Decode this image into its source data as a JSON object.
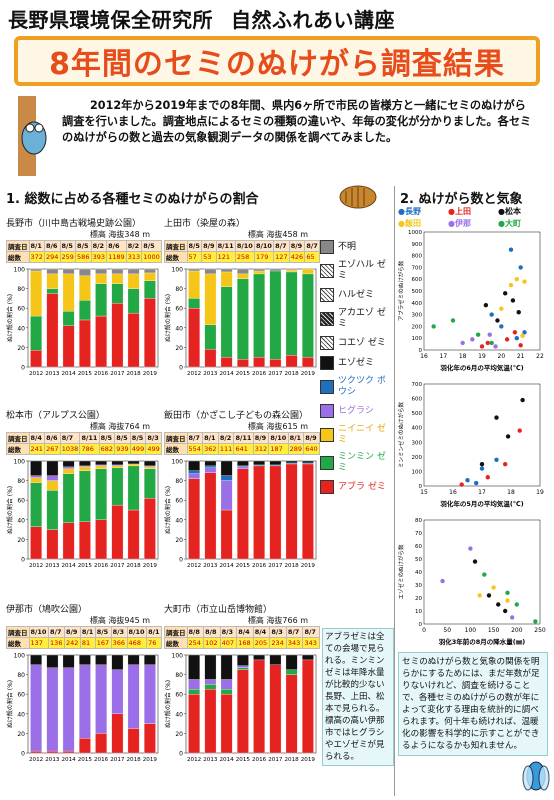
{
  "header": {
    "institute": "長野県環境保全研究所",
    "lecture": "自然ふれあい講座"
  },
  "banner": {
    "title": "8年間のセミのぬけがら調査結果"
  },
  "intro": "2012年から2019年までの8年間、県内6ヶ所で市民の皆様方と一緒にセミのぬけがら調査を行いました。調査地点によるセミの種類の違いや、年毎の変化が分かりました。各セミのぬけがらの数と過去の気象観測データの関係を調べてみました。",
  "section1": "1. 総数に占める各種セミのぬけがらの割合",
  "section2": "2. ぬけがら数と気象",
  "colors": {
    "unknown": "#888888",
    "ezoharu": "#dddddd",
    "haru": "#cccccc",
    "akaezo": "#555555",
    "koezo": "#bbbbbb",
    "ezo": "#111111",
    "tsukutsuku": "#1f6fbf",
    "higurashi": "#9b6fe8",
    "niinii": "#f5c518",
    "minmin": "#22a844",
    "abura": "#e52421"
  },
  "labels": {
    "survey": "調査日",
    "total": "総数",
    "ylabel": "ぬけ殻の割合 (%)"
  },
  "legend": [
    {
      "key": "unknown",
      "label": "不明",
      "color": "#888888",
      "text_color": "#111"
    },
    {
      "key": "ezoharu",
      "label": "エゾハル ゼミ",
      "color": "#dddddd",
      "text_color": "#111"
    },
    {
      "key": "haru",
      "label": "ハルゼミ",
      "color": "#cccccc",
      "text_color": "#111"
    },
    {
      "key": "akaezo",
      "label": "アカエゾ ゼミ",
      "color": "#555555",
      "text_color": "#111"
    },
    {
      "key": "koezo",
      "label": "コエゾ ゼミ",
      "color": "#bbbbbb",
      "text_color": "#111"
    },
    {
      "key": "ezo",
      "label": "エゾゼミ",
      "color": "#111111",
      "text_color": "#111"
    },
    {
      "key": "tsukutsuku",
      "label": "ツクツク ボウシ",
      "color": "#1f6fbf",
      "text_color": "#1f6fbf"
    },
    {
      "key": "higurashi",
      "label": "ヒグラシ",
      "color": "#9b6fe8",
      "text_color": "#9b6fe8"
    },
    {
      "key": "niinii",
      "label": "ニイニイ ゼミ",
      "color": "#f5c518",
      "text_color": "#e6a800"
    },
    {
      "key": "minmin",
      "label": "ミンミン ゼミ",
      "color": "#22a844",
      "text_color": "#22a844"
    },
    {
      "key": "abura",
      "label": "アブラ ゼミ",
      "color": "#e52421",
      "text_color": "#e52421"
    }
  ],
  "panels": [
    {
      "title": "長野市（川中島古戦場史跡公園）",
      "elev": "標高 海抜348 m",
      "dates": [
        "8/1",
        "8/6",
        "8/5",
        "8/5",
        "8/2",
        "8/6",
        "8/2",
        "8/5"
      ],
      "totals": [
        "372",
        "294",
        "259",
        "586",
        "393",
        "1189",
        "313",
        "1000"
      ]
    },
    {
      "title": "上田市（染屋の森）",
      "elev": "標高 海抜458 m",
      "dates": [
        "8/5",
        "8/9",
        "8/11",
        "8/10",
        "8/10",
        "8/7",
        "8/9",
        "8/7"
      ],
      "totals": [
        "57",
        "53",
        "121",
        "258",
        "179",
        "127",
        "426",
        "65"
      ]
    },
    {
      "title": "松本市（アルプス公園）",
      "elev": "標高 海抜764 m",
      "dates": [
        "8/4",
        "8/6",
        "8/7",
        "8/11",
        "8/5",
        "8/5",
        "8/5",
        "8/3"
      ],
      "totals": [
        "241",
        "267",
        "1038",
        "786",
        "682",
        "939",
        "499",
        "499"
      ]
    },
    {
      "title": "飯田市（かざこし子どもの森公園）",
      "elev": "標高 海抜615 m",
      "dates": [
        "8/7",
        "8/1",
        "8/2",
        "8/11",
        "8/9",
        "8/10",
        "8/1",
        "8/9"
      ],
      "totals": [
        "554",
        "362",
        "111",
        "641",
        "312",
        "187",
        "289",
        "640"
      ]
    },
    {
      "title": "伊那市（鳩吹公園）",
      "elev": "標高 海抜945 m",
      "dates": [
        "8/10",
        "8/7",
        "8/9",
        "8/1",
        "8/5",
        "8/3",
        "8/10",
        "8/1"
      ],
      "totals": [
        "137",
        "136",
        "242",
        "81",
        "167",
        "366",
        "468",
        "76"
      ]
    },
    {
      "title": "大町市（市立山岳博物館）",
      "elev": "標高 海抜766 m",
      "dates": [
        "8/8",
        "8/8",
        "8/3",
        "8/4",
        "8/4",
        "8/3",
        "8/7",
        "8/7"
      ],
      "totals": [
        "254",
        "102",
        "407",
        "168",
        "205",
        "234",
        "343",
        "343"
      ]
    }
  ],
  "years": [
    "2012",
    "2013",
    "2014",
    "2015",
    "2016",
    "2017",
    "2018",
    "2019"
  ],
  "note_left": "アブラゼミは全ての会場で見られる。ミンミンゼミは年降水量が比較的少ない長野、上田、松本で見られる。標高の高い伊那市ではヒグラシやエゾゼミが見られる。",
  "note_right": "セミのぬけがら数と気象の関係を明らかにするためには、まだ年数が足りないけれど、調査を続けることで、各種セミのぬけがらの数が年によって変化する理由を統計的に調べられます。何十年も続ければ、温暖化の影響を科学的に示すことができるようになるかも知れません。",
  "scatter_legend": [
    {
      "label": "長野",
      "color": "#1f6fbf"
    },
    {
      "label": "上田",
      "color": "#e52421"
    },
    {
      "label": "松本",
      "color": "#111111"
    },
    {
      "label": "飯田",
      "color": "#f5c518"
    },
    {
      "label": "伊那",
      "color": "#9b6fe8"
    },
    {
      "label": "大町",
      "color": "#22a844"
    }
  ],
  "chart_data": [
    {
      "type": "bar",
      "title": "長野市（川中島古戦場史跡公園）",
      "categories": [
        "2012",
        "2013",
        "2014",
        "2015",
        "2016",
        "2017",
        "2018",
        "2019"
      ],
      "ylabel": "ぬけ殻の割合 (%)",
      "ylim": [
        0,
        100
      ],
      "series": [
        {
          "name": "アブラゼミ",
          "values": [
            17,
            75,
            42,
            48,
            52,
            65,
            55,
            70
          ]
        },
        {
          "name": "ミンミンゼミ",
          "values": [
            35,
            5,
            15,
            20,
            33,
            20,
            25,
            18
          ]
        },
        {
          "name": "ニイニイゼミ",
          "values": [
            46,
            15,
            38,
            25,
            10,
            10,
            15,
            8
          ]
        },
        {
          "name": "エゾゼミ",
          "values": [
            0,
            0,
            0,
            0,
            0,
            0,
            0,
            0
          ]
        },
        {
          "name": "不明",
          "values": [
            2,
            5,
            5,
            7,
            5,
            5,
            5,
            4
          ]
        }
      ]
    },
    {
      "type": "bar",
      "title": "上田市（染屋の森）",
      "categories": [
        "2012",
        "2013",
        "2014",
        "2015",
        "2016",
        "2017",
        "2018",
        "2019"
      ],
      "ylabel": "ぬけ殻の割合 (%)",
      "ylim": [
        0,
        100
      ],
      "series": [
        {
          "name": "アブラゼミ",
          "values": [
            60,
            18,
            10,
            8,
            10,
            8,
            12,
            10
          ]
        },
        {
          "name": "ミンミンゼミ",
          "values": [
            10,
            25,
            72,
            82,
            85,
            90,
            85,
            85
          ]
        },
        {
          "name": "ニイニイゼミ",
          "values": [
            28,
            52,
            15,
            5,
            3,
            0,
            2,
            5
          ]
        },
        {
          "name": "不明",
          "values": [
            2,
            5,
            3,
            5,
            2,
            2,
            1,
            0
          ]
        }
      ]
    },
    {
      "type": "bar",
      "title": "松本市（アルプス公園）",
      "categories": [
        "2012",
        "2013",
        "2014",
        "2015",
        "2016",
        "2017",
        "2018",
        "2019"
      ],
      "ylabel": "ぬけ殻の割合 (%)",
      "ylim": [
        0,
        100
      ],
      "series": [
        {
          "name": "アブラゼミ",
          "values": [
            33,
            30,
            37,
            38,
            40,
            55,
            50,
            62
          ]
        },
        {
          "name": "ミンミンゼミ",
          "values": [
            45,
            40,
            50,
            52,
            52,
            38,
            45,
            30
          ]
        },
        {
          "name": "ニイニイゼミ",
          "values": [
            5,
            10,
            5,
            4,
            3,
            2,
            2,
            2
          ]
        },
        {
          "name": "ヒグラシ",
          "values": [
            2,
            5,
            2,
            1,
            1,
            1,
            0,
            1
          ]
        },
        {
          "name": "エゾゼミ",
          "values": [
            15,
            15,
            6,
            5,
            4,
            4,
            3,
            5
          ]
        }
      ]
    },
    {
      "type": "bar",
      "title": "飯田市（かざこし子どもの森公園）",
      "categories": [
        "2012",
        "2013",
        "2014",
        "2015",
        "2016",
        "2017",
        "2018",
        "2019"
      ],
      "ylabel": "ぬけ殻の割合 (%)",
      "ylim": [
        0,
        100
      ],
      "series": [
        {
          "name": "アブラゼミ",
          "values": [
            82,
            88,
            50,
            92,
            95,
            95,
            97,
            97
          ]
        },
        {
          "name": "ヒグラシ",
          "values": [
            5,
            5,
            30,
            2,
            0,
            0,
            0,
            0
          ]
        },
        {
          "name": "ツクツクボウシ",
          "values": [
            3,
            2,
            5,
            1,
            1,
            1,
            1,
            1
          ]
        },
        {
          "name": "エゾゼミ",
          "values": [
            10,
            5,
            15,
            5,
            4,
            4,
            2,
            2
          ]
        }
      ]
    },
    {
      "type": "bar",
      "title": "伊那市（鳩吹公園）",
      "categories": [
        "2012",
        "2013",
        "2014",
        "2015",
        "2016",
        "2017",
        "2018",
        "2019"
      ],
      "ylabel": "ぬけ殻の割合 (%)",
      "ylim": [
        0,
        100
      ],
      "series": [
        {
          "name": "アブラゼミ",
          "values": [
            2,
            2,
            2,
            15,
            20,
            40,
            25,
            30
          ]
        },
        {
          "name": "ヒグラシ",
          "values": [
            88,
            85,
            85,
            75,
            70,
            45,
            65,
            60
          ]
        },
        {
          "name": "エゾゼミ",
          "values": [
            10,
            13,
            13,
            10,
            10,
            15,
            10,
            10
          ]
        }
      ]
    },
    {
      "type": "bar",
      "title": "大町市（市立山岳博物館）",
      "categories": [
        "2012",
        "2013",
        "2014",
        "2015",
        "2016",
        "2017",
        "2018",
        "2019"
      ],
      "ylabel": "ぬけ殻の割合 (%)",
      "ylim": [
        0,
        100
      ],
      "series": [
        {
          "name": "アブラゼミ",
          "values": [
            60,
            65,
            60,
            85,
            95,
            90,
            80,
            95
          ]
        },
        {
          "name": "ミンミンゼミ",
          "values": [
            5,
            5,
            5,
            2,
            0,
            0,
            5,
            0
          ]
        },
        {
          "name": "ヒグラシ",
          "values": [
            10,
            5,
            10,
            2,
            0,
            0,
            0,
            0
          ]
        },
        {
          "name": "エゾゼミ",
          "values": [
            25,
            25,
            25,
            11,
            5,
            10,
            15,
            5
          ]
        }
      ]
    },
    {
      "type": "scatter",
      "xlabel": "羽化年の6月の平均気温(℃)",
      "ylabel": "アブラゼミのぬけがら数",
      "xlim": [
        16,
        22
      ],
      "ylim": [
        0,
        1000
      ],
      "xticks": [
        "16",
        "17",
        "18",
        "19",
        "20",
        "21",
        "22"
      ],
      "yticks": [
        "0",
        "100",
        "200",
        "300",
        "400",
        "500",
        "600",
        "700",
        "800",
        "900",
        "1000"
      ],
      "series": [
        {
          "name": "長野",
          "points": [
            [
              19.5,
              300
            ],
            [
              20,
              200
            ],
            [
              20.5,
              850
            ],
            [
              21,
              700
            ],
            [
              20.8,
              100
            ],
            [
              21.2,
              150
            ]
          ]
        },
        {
          "name": "上田",
          "points": [
            [
              19,
              30
            ],
            [
              19.3,
              60
            ],
            [
              20.3,
              90
            ],
            [
              20.7,
              150
            ],
            [
              21,
              40
            ]
          ]
        },
        {
          "name": "松本",
          "points": [
            [
              19.8,
              250
            ],
            [
              19.2,
              380
            ],
            [
              20.2,
              480
            ],
            [
              20.6,
              420
            ],
            [
              20.9,
              320
            ]
          ]
        },
        {
          "name": "飯田",
          "points": [
            [
              20.5,
              550
            ],
            [
              20.8,
              600
            ],
            [
              21.1,
              120
            ],
            [
              20,
              350
            ],
            [
              21.2,
              580
            ]
          ]
        },
        {
          "name": "伊那",
          "points": [
            [
              18,
              60
            ],
            [
              18.5,
              90
            ],
            [
              19.4,
              130
            ],
            [
              19.7,
              30
            ]
          ]
        },
        {
          "name": "大町",
          "points": [
            [
              16.5,
              200
            ],
            [
              17.5,
              250
            ],
            [
              18.8,
              130
            ],
            [
              19.5,
              60
            ]
          ]
        }
      ]
    },
    {
      "type": "scatter",
      "xlabel": "羽化年の5月の平均気温(℃)",
      "ylabel": "ミンミンゼミのぬけがら数",
      "xlim": [
        15,
        19
      ],
      "ylim": [
        0,
        700
      ],
      "xticks": [
        "15",
        "16",
        "17",
        "18",
        "19"
      ],
      "yticks": [
        "0",
        "100",
        "200",
        "300",
        "400",
        "500",
        "600",
        "700"
      ],
      "series": [
        {
          "name": "長野",
          "points": [
            [
              16.5,
              40
            ],
            [
              17,
              120
            ],
            [
              17.5,
              180
            ],
            [
              16.8,
              20
            ]
          ]
        },
        {
          "name": "上田",
          "points": [
            [
              17.2,
              60
            ],
            [
              17.8,
              150
            ],
            [
              18.3,
              380
            ],
            [
              16.3,
              10
            ]
          ]
        },
        {
          "name": "松本",
          "points": [
            [
              17,
              150
            ],
            [
              17.5,
              470
            ],
            [
              18.4,
              590
            ],
            [
              17.9,
              340
            ]
          ]
        }
      ]
    },
    {
      "type": "scatter",
      "xlabel": "羽化3年前の8月の降水量(㎜)",
      "ylabel": "エゾゼミのぬけがら数",
      "xlim": [
        0,
        250
      ],
      "ylim": [
        0,
        80
      ],
      "xticks": [
        "0",
        "50",
        "100",
        "150",
        "200",
        "250"
      ],
      "yticks": [
        "0",
        "10",
        "20",
        "30",
        "40",
        "50",
        "60",
        "70",
        "80"
      ],
      "series": [
        {
          "name": "松本",
          "points": [
            [
              110,
              48
            ],
            [
              140,
              22
            ],
            [
              160,
              15
            ],
            [
              175,
              10
            ]
          ]
        },
        {
          "name": "飯田",
          "points": [
            [
              120,
              22
            ],
            [
              150,
              28
            ],
            [
              180,
              18
            ]
          ]
        },
        {
          "name": "伊那",
          "points": [
            [
              40,
              33
            ],
            [
              100,
              58
            ],
            [
              190,
              5
            ]
          ]
        },
        {
          "name": "大町",
          "points": [
            [
              180,
              24
            ],
            [
              200,
              15
            ],
            [
              240,
              2
            ],
            [
              130,
              38
            ]
          ]
        }
      ]
    }
  ]
}
